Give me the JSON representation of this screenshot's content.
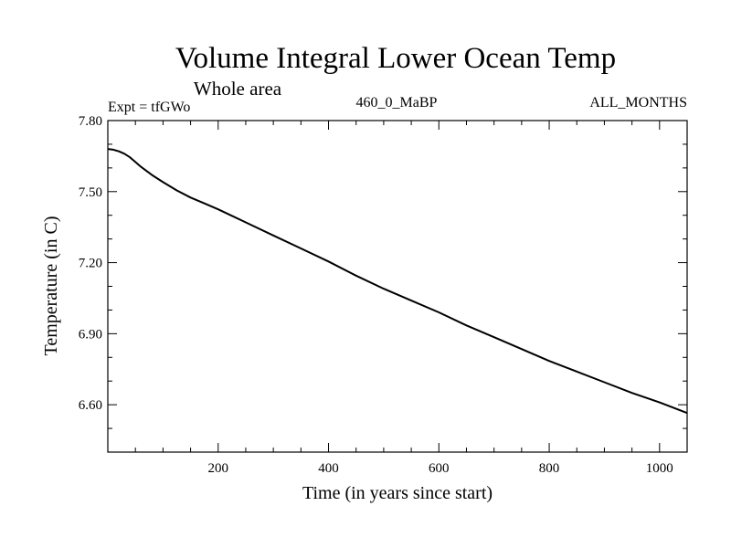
{
  "chart_data": {
    "type": "line",
    "title": "Volume Integral Lower Ocean Temp",
    "subtitle": "Whole area",
    "experiment": "Expt = tfGWo",
    "period": "460_0_MaBP",
    "months": "ALL_MONTHS",
    "xlabel": "Time (in years since start)",
    "ylabel": "Temperature (in C)",
    "xlim": [
      0,
      1050
    ],
    "ylim": [
      6.4,
      7.8
    ],
    "x_ticks": [
      200,
      400,
      600,
      800,
      1000
    ],
    "x_tick_labels": [
      "200",
      "400",
      "600",
      "800",
      "1000"
    ],
    "y_ticks": [
      6.6,
      6.9,
      7.2,
      7.5,
      7.8
    ],
    "y_tick_labels": [
      "6.60",
      "6.90",
      "7.20",
      "7.50",
      "7.80"
    ],
    "series": [
      {
        "name": "tfGWo",
        "x": [
          0,
          10,
          20,
          30,
          40,
          50,
          60,
          80,
          100,
          125,
          150,
          175,
          200,
          250,
          300,
          350,
          400,
          450,
          500,
          550,
          600,
          650,
          700,
          750,
          800,
          850,
          900,
          950,
          1000,
          1050
        ],
        "y": [
          7.68,
          7.677,
          7.67,
          7.66,
          7.645,
          7.625,
          7.605,
          7.57,
          7.54,
          7.505,
          7.475,
          7.45,
          7.425,
          7.37,
          7.315,
          7.26,
          7.205,
          7.145,
          7.09,
          7.04,
          6.99,
          6.935,
          6.885,
          6.835,
          6.785,
          6.74,
          6.695,
          6.65,
          6.61,
          6.565
        ]
      }
    ]
  }
}
